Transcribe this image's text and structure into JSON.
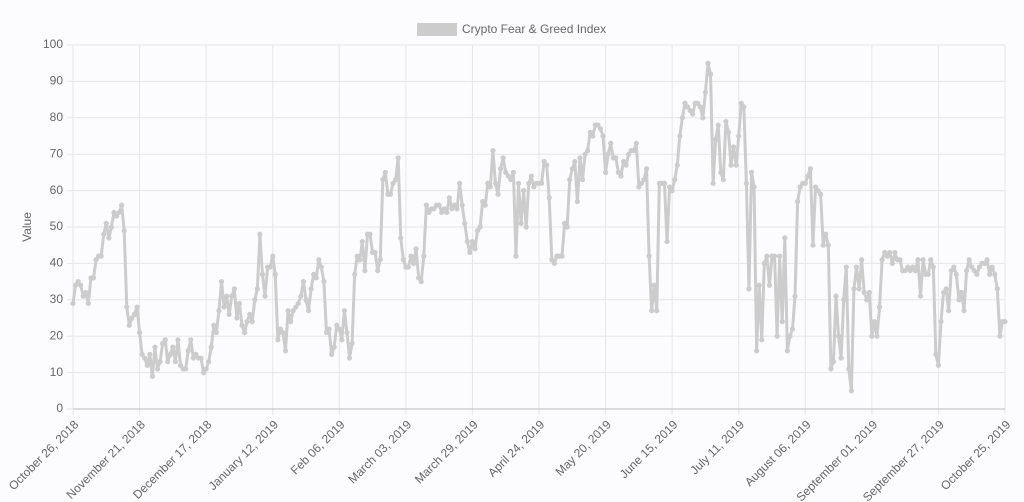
{
  "chart_data": {
    "type": "line",
    "legend_label": "Crypto Fear & Greed Index",
    "y_label": "Value",
    "color": "#cccccc",
    "grid": true,
    "ylim": [
      0,
      100
    ],
    "yticks": [
      0,
      10,
      20,
      30,
      40,
      50,
      60,
      70,
      80,
      90,
      100
    ],
    "categories": [
      "October 26, 2018",
      null,
      null,
      null,
      null,
      null,
      null,
      null,
      null,
      null,
      null,
      null,
      null,
      null,
      null,
      null,
      null,
      null,
      null,
      null,
      null,
      null,
      null,
      null,
      null,
      null,
      "November 21, 2018",
      null,
      null,
      null,
      null,
      null,
      null,
      null,
      null,
      null,
      null,
      null,
      null,
      null,
      null,
      null,
      null,
      null,
      null,
      null,
      null,
      null,
      null,
      null,
      null,
      null,
      "December 17, 2018",
      null,
      null,
      null,
      null,
      null,
      null,
      null,
      null,
      null,
      null,
      null,
      null,
      null,
      null,
      null,
      null,
      null,
      null,
      null,
      null,
      null,
      null,
      null,
      null,
      null,
      "January 12, 2019",
      null,
      null,
      null,
      null,
      null,
      null,
      null,
      null,
      null,
      null,
      null,
      null,
      null,
      null,
      null,
      null,
      null,
      null,
      null,
      null,
      null,
      null,
      null,
      null,
      null,
      "Feb 06, 2019",
      null,
      null,
      null,
      null,
      null,
      null,
      null,
      null,
      null,
      null,
      null,
      null,
      null,
      null,
      null,
      null,
      null,
      null,
      null,
      null,
      null,
      null,
      null,
      null,
      null,
      "March 03, 2019",
      null,
      null,
      null,
      null,
      null,
      null,
      null,
      null,
      null,
      null,
      null,
      null,
      null,
      null,
      null,
      null,
      null,
      null,
      null,
      null,
      null,
      null,
      null,
      null,
      null,
      "March 29, 2019",
      null,
      null,
      null,
      null,
      null,
      null,
      null,
      null,
      null,
      null,
      null,
      null,
      null,
      null,
      null,
      null,
      null,
      null,
      null,
      null,
      null,
      null,
      null,
      null,
      null,
      "April 24, 2019",
      null,
      null,
      null,
      null,
      null,
      null,
      null,
      null,
      null,
      null,
      null,
      null,
      null,
      null,
      null,
      null,
      null,
      null,
      null,
      null,
      null,
      null,
      null,
      null,
      null,
      "May 20, 2019",
      null,
      null,
      null,
      null,
      null,
      null,
      null,
      null,
      null,
      null,
      null,
      null,
      null,
      null,
      null,
      null,
      null,
      null,
      null,
      null,
      null,
      null,
      null,
      null,
      null,
      "June 15, 2019",
      null,
      null,
      null,
      null,
      null,
      null,
      null,
      null,
      null,
      null,
      null,
      null,
      null,
      null,
      null,
      null,
      null,
      null,
      null,
      null,
      null,
      null,
      null,
      null,
      null,
      "July 11, 2019",
      null,
      null,
      null,
      null,
      null,
      null,
      null,
      null,
      null,
      null,
      null,
      null,
      null,
      null,
      null,
      null,
      null,
      null,
      null,
      null,
      null,
      null,
      null,
      null,
      null,
      "August 06, 2019",
      null,
      null,
      null,
      null,
      null,
      null,
      null,
      null,
      null,
      null,
      null,
      null,
      null,
      null,
      null,
      null,
      null,
      null,
      null,
      null,
      null,
      null,
      null,
      null,
      null,
      "September 01, 2019",
      null,
      null,
      null,
      null,
      null,
      null,
      null,
      null,
      null,
      null,
      null,
      null,
      null,
      null,
      null,
      null,
      null,
      null,
      null,
      null,
      null,
      null,
      null,
      null,
      null,
      "September 27, 2019",
      null,
      null,
      null,
      null,
      null,
      null,
      null,
      null,
      null,
      null,
      null,
      null,
      null,
      null,
      null,
      null,
      null,
      null,
      null,
      null,
      null,
      null,
      null,
      null,
      null,
      "October 25, 2019"
    ],
    "values": [
      29,
      34,
      35,
      34,
      31,
      32,
      29,
      36,
      36,
      41,
      42,
      42,
      48,
      51,
      47,
      50,
      54,
      53,
      54,
      56,
      49,
      28,
      23,
      25,
      26,
      28,
      21,
      15,
      14,
      12,
      15,
      9,
      17,
      11,
      13,
      18,
      19,
      13,
      15,
      17,
      13,
      19,
      12,
      11,
      11,
      16,
      19,
      14,
      15,
      14,
      14,
      10,
      11,
      13,
      17,
      23,
      21,
      27,
      35,
      28,
      31,
      26,
      31,
      33,
      25,
      29,
      23,
      21,
      24,
      26,
      24,
      30,
      33,
      48,
      37,
      31,
      39,
      39,
      42,
      37,
      19,
      22,
      21,
      16,
      27,
      24,
      27,
      28,
      29,
      31,
      35,
      30,
      27,
      33,
      37,
      36,
      41,
      39,
      35,
      21,
      22,
      15,
      17,
      23,
      22,
      19,
      27,
      21,
      14,
      18,
      37,
      42,
      41,
      46,
      38,
      48,
      48,
      43,
      43,
      38,
      41,
      63,
      65,
      59,
      59,
      62,
      63,
      69,
      47,
      41,
      39,
      39,
      42,
      40,
      44,
      36,
      35,
      42,
      56,
      54,
      55,
      55,
      56,
      56,
      54,
      55,
      54,
      58,
      55,
      56,
      55,
      62,
      56,
      51,
      46,
      43,
      46,
      44,
      49,
      50,
      57,
      56,
      62,
      61,
      71,
      62,
      59,
      66,
      69,
      65,
      64,
      63,
      65,
      42,
      62,
      51,
      60,
      50,
      62,
      64,
      61,
      62,
      62,
      62,
      68,
      67,
      58,
      41,
      40,
      42,
      42,
      42,
      51,
      50,
      63,
      66,
      68,
      57,
      69,
      63,
      70,
      71,
      76,
      75,
      78,
      78,
      77,
      75,
      65,
      70,
      73,
      69,
      69,
      65,
      64,
      68,
      67,
      70,
      71,
      71,
      73,
      61,
      62,
      63,
      66,
      42,
      27,
      34,
      27,
      62,
      62,
      62,
      46,
      61,
      60,
      63,
      67,
      75,
      80,
      84,
      83,
      82,
      81,
      84,
      84,
      83,
      80,
      87,
      95,
      92,
      62,
      74,
      78,
      65,
      63,
      79,
      76,
      67,
      72,
      67,
      75,
      84,
      83,
      62,
      33,
      65,
      61,
      16,
      34,
      19,
      40,
      42,
      34,
      42,
      42,
      20,
      42,
      24,
      47,
      16,
      20,
      22,
      31,
      57,
      61,
      62,
      62,
      64,
      66,
      45,
      61,
      60,
      59,
      45,
      48,
      45,
      11,
      13,
      31,
      20,
      14,
      30,
      39,
      11,
      5,
      33,
      39,
      33,
      41,
      32,
      30,
      32,
      20,
      24,
      20,
      28,
      41,
      43,
      42,
      43,
      40,
      43,
      41,
      41,
      38,
      38,
      39,
      38,
      39,
      38,
      41,
      31,
      41,
      37,
      37,
      41,
      39,
      15,
      12,
      24,
      32,
      33,
      27,
      38,
      39,
      37,
      30,
      32,
      27,
      38,
      41,
      39,
      38,
      37,
      39,
      40,
      40,
      41,
      37,
      39,
      37,
      33,
      20,
      24,
      24
    ]
  }
}
